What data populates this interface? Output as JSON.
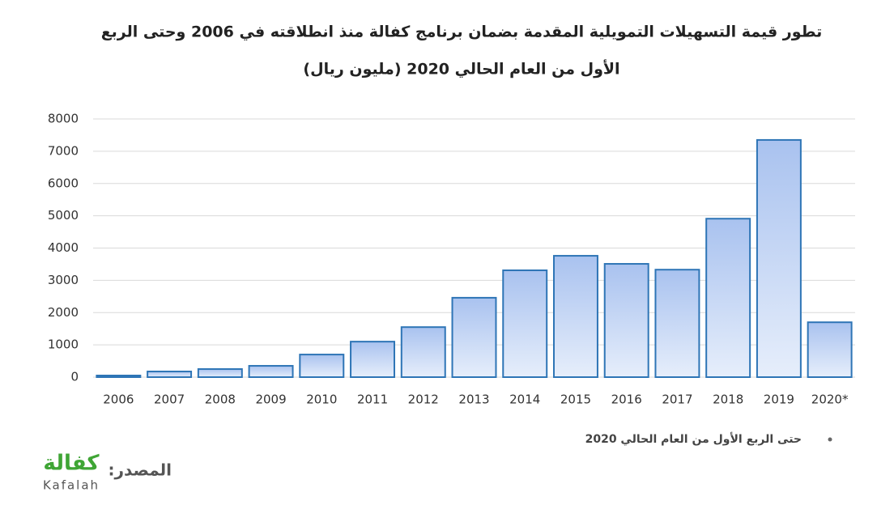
{
  "chart_data": {
    "type": "bar",
    "title": [
      "تطور قيمة التسهيلات التمويلية المقدمة بضمان برنامج كفالة منذ انطلاقته في 2006 وحتى الربع",
      "الأول من العام الحالي 2020 (مليون ريال)"
    ],
    "categories": [
      "2006",
      "2007",
      "2008",
      "2009",
      "2010",
      "2011",
      "2012",
      "2013",
      "2014",
      "2015",
      "2016",
      "2017",
      "2018",
      "2019",
      "2020*"
    ],
    "values": [
      50,
      175,
      250,
      350,
      700,
      1100,
      1550,
      2460,
      3310,
      3760,
      3510,
      3330,
      4910,
      7350,
      1700
    ],
    "color": "#2e75b6",
    "ylim": [
      0,
      8000
    ],
    "yticks": [
      0,
      1000,
      2000,
      3000,
      4000,
      5000,
      6000,
      7000,
      8000
    ],
    "grid": true,
    "footnote": "حتى الربع الأول من العام الحالي 2020",
    "source_label": "المصدر:",
    "source_logo": {
      "arabic": "كفالة",
      "latin": "Kafalah"
    }
  }
}
